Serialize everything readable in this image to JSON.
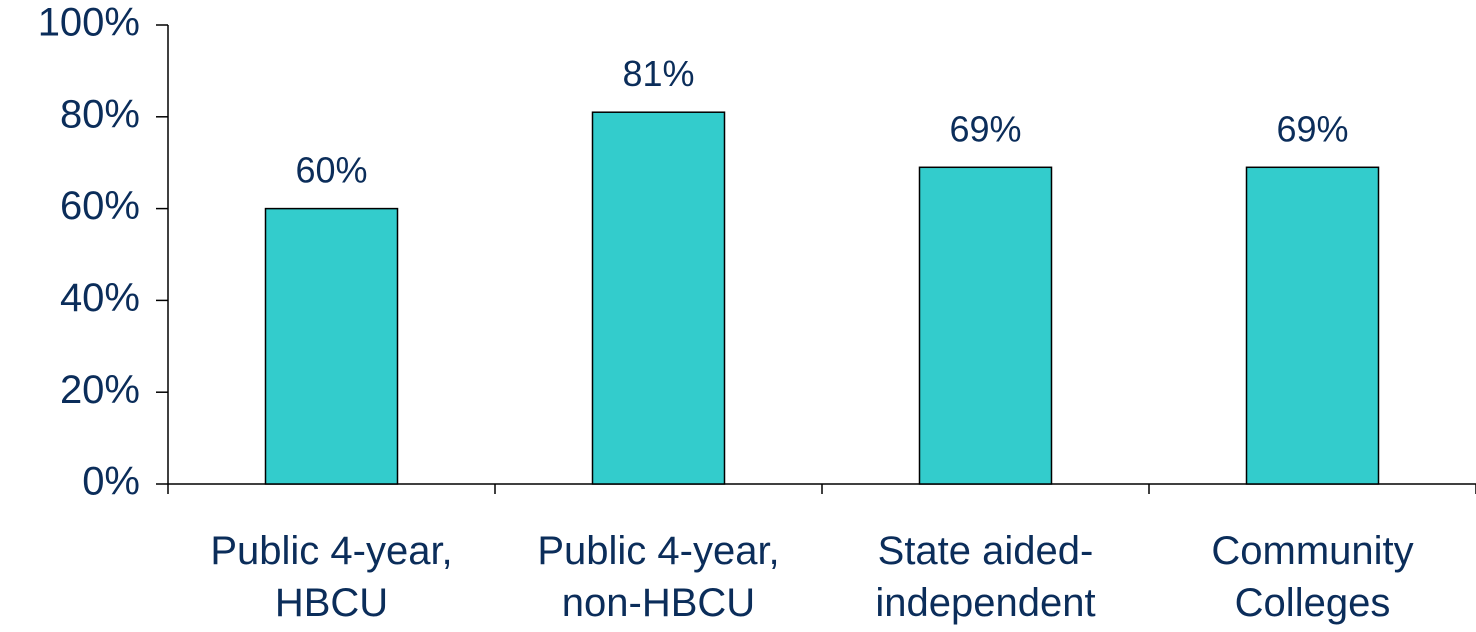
{
  "chart_data": {
    "type": "bar",
    "categories": [
      [
        "Public 4-year,",
        "HBCU"
      ],
      [
        "Public 4-year,",
        "non-HBCU"
      ],
      [
        "State aided-",
        "independent"
      ],
      [
        "Community",
        "Colleges"
      ]
    ],
    "values": [
      60,
      81,
      69,
      69
    ],
    "data_labels": [
      "60%",
      "81%",
      "69%",
      "69%"
    ],
    "y_ticks": [
      "0%",
      "20%",
      "40%",
      "60%",
      "80%",
      "100%"
    ],
    "ylim": [
      0,
      100
    ],
    "title": "",
    "xlabel": "",
    "ylabel": "",
    "grid": false,
    "legend": "none",
    "colors": {
      "bar": "#33CCCC",
      "text": "#0B2D5A",
      "axis": "#000000"
    }
  }
}
